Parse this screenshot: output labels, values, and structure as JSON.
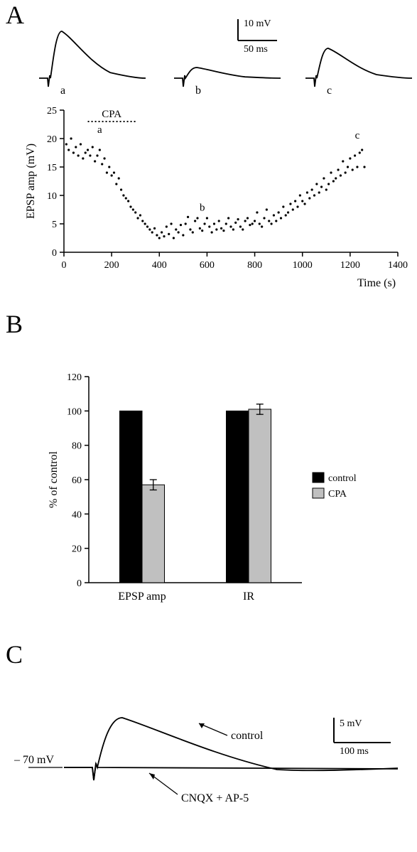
{
  "panelA": {
    "label": "A",
    "scalebar": {
      "y_label": "10 mV",
      "x_label": "50 ms",
      "label_fontsize": 14
    },
    "traces": {
      "a_label": "a",
      "b_label": "b",
      "c_label": "c",
      "trace_color": "#000000",
      "trace_width": 1.8,
      "a_peak_mV": 22,
      "b_peak_mV": 5,
      "c_peak_mV": 14
    },
    "scatter": {
      "xlabel": "Time (s)",
      "ylabel": "EPSP amp (mV)",
      "label_fontsize": 16,
      "tick_fontsize": 14,
      "xlim": [
        0,
        1400
      ],
      "xtick_step": 200,
      "ylim": [
        0,
        25
      ],
      "ytick_step": 5,
      "point_color": "#000000",
      "point_radius": 1.6,
      "cpa_bar": {
        "label": "CPA",
        "start_s": 100,
        "end_s": 300,
        "y_mV": 23,
        "dash": "2,3",
        "stroke_width": 2
      },
      "marker_a": {
        "label": "a",
        "x_s": 150,
        "y_mV": 21
      },
      "marker_c": {
        "label": "c",
        "x_s": 1230,
        "y_mV": 20
      },
      "marker_b": {
        "label": "b",
        "x_s": 580,
        "y_mV": 7.3
      },
      "data": [
        [
          10,
          19
        ],
        [
          20,
          18
        ],
        [
          30,
          20
        ],
        [
          40,
          17.5
        ],
        [
          50,
          18.5
        ],
        [
          60,
          17
        ],
        [
          70,
          19
        ],
        [
          80,
          16.5
        ],
        [
          90,
          17.5
        ],
        [
          100,
          18
        ],
        [
          110,
          17
        ],
        [
          120,
          18.5
        ],
        [
          130,
          16
        ],
        [
          140,
          17
        ],
        [
          150,
          18
        ],
        [
          160,
          15.5
        ],
        [
          170,
          16.5
        ],
        [
          180,
          14
        ],
        [
          190,
          15
        ],
        [
          200,
          13.5
        ],
        [
          210,
          14
        ],
        [
          220,
          12
        ],
        [
          230,
          13
        ],
        [
          240,
          11
        ],
        [
          250,
          10
        ],
        [
          260,
          9.5
        ],
        [
          270,
          9
        ],
        [
          280,
          8
        ],
        [
          290,
          7.5
        ],
        [
          300,
          7
        ],
        [
          310,
          6
        ],
        [
          320,
          6.5
        ],
        [
          330,
          5.5
        ],
        [
          340,
          5
        ],
        [
          350,
          4.5
        ],
        [
          360,
          4
        ],
        [
          370,
          3.5
        ],
        [
          380,
          4.2
        ],
        [
          390,
          3
        ],
        [
          400,
          2.5
        ],
        [
          410,
          3.5
        ],
        [
          420,
          2.8
        ],
        [
          430,
          4.5
        ],
        [
          440,
          3.2
        ],
        [
          450,
          5
        ],
        [
          460,
          2.5
        ],
        [
          470,
          4
        ],
        [
          480,
          3.5
        ],
        [
          490,
          4.8
        ],
        [
          500,
          3
        ],
        [
          510,
          5
        ],
        [
          520,
          6.2
        ],
        [
          530,
          4
        ],
        [
          540,
          3.5
        ],
        [
          550,
          5.5
        ],
        [
          560,
          6
        ],
        [
          570,
          4.2
        ],
        [
          580,
          3.8
        ],
        [
          590,
          5
        ],
        [
          600,
          6
        ],
        [
          610,
          4.5
        ],
        [
          620,
          3.5
        ],
        [
          630,
          5
        ],
        [
          640,
          4
        ],
        [
          650,
          5.5
        ],
        [
          660,
          4.2
        ],
        [
          670,
          3.8
        ],
        [
          680,
          5
        ],
        [
          690,
          6
        ],
        [
          700,
          4.5
        ],
        [
          710,
          4
        ],
        [
          720,
          5.2
        ],
        [
          730,
          5.8
        ],
        [
          740,
          4.5
        ],
        [
          750,
          4
        ],
        [
          760,
          5.5
        ],
        [
          770,
          6
        ],
        [
          780,
          4.8
        ],
        [
          790,
          5
        ],
        [
          800,
          5.5
        ],
        [
          810,
          7
        ],
        [
          820,
          5
        ],
        [
          830,
          4.5
        ],
        [
          840,
          6
        ],
        [
          850,
          7.5
        ],
        [
          860,
          5.5
        ],
        [
          870,
          5
        ],
        [
          880,
          6.5
        ],
        [
          890,
          5.5
        ],
        [
          900,
          7
        ],
        [
          910,
          6
        ],
        [
          920,
          8
        ],
        [
          930,
          6.5
        ],
        [
          940,
          7
        ],
        [
          950,
          8.5
        ],
        [
          960,
          7.5
        ],
        [
          970,
          9
        ],
        [
          980,
          8
        ],
        [
          990,
          10
        ],
        [
          1000,
          9
        ],
        [
          1010,
          8.5
        ],
        [
          1020,
          10.5
        ],
        [
          1030,
          9.5
        ],
        [
          1040,
          11
        ],
        [
          1050,
          10
        ],
        [
          1060,
          12
        ],
        [
          1070,
          10.5
        ],
        [
          1080,
          11.5
        ],
        [
          1090,
          13
        ],
        [
          1100,
          11
        ],
        [
          1110,
          12
        ],
        [
          1120,
          14
        ],
        [
          1130,
          12.5
        ],
        [
          1140,
          13
        ],
        [
          1150,
          14.5
        ],
        [
          1160,
          13.5
        ],
        [
          1170,
          16
        ],
        [
          1180,
          14
        ],
        [
          1190,
          15
        ],
        [
          1200,
          16.5
        ],
        [
          1210,
          14.5
        ],
        [
          1220,
          17
        ],
        [
          1230,
          15
        ],
        [
          1240,
          17.5
        ],
        [
          1250,
          18
        ],
        [
          1260,
          15
        ]
      ]
    }
  },
  "panelB": {
    "label": "B",
    "chart": {
      "ylabel": "% of control",
      "label_fontsize": 16,
      "tick_fontsize": 14,
      "ylim": [
        0,
        120
      ],
      "ytick_step": 20,
      "categories": [
        "EPSP amp",
        "IR"
      ],
      "series": [
        {
          "name": "control",
          "color": "#000000",
          "values": [
            100,
            100
          ],
          "err": [
            0,
            0
          ]
        },
        {
          "name": "CPA",
          "color": "#c0c0c0",
          "values": [
            57,
            101
          ],
          "err": [
            3,
            3
          ]
        }
      ],
      "bar_width": 0.42,
      "gap_within": 0.0,
      "legend_fontsize": 14,
      "err_color": "#000000"
    }
  },
  "panelC": {
    "label": "C",
    "baseline_label": "– 70 mV",
    "control_label": "control",
    "drug_label": "CNQX + AP-5",
    "scalebar": {
      "y_label": "5 mV",
      "x_label": "100 ms",
      "label_fontsize": 14
    },
    "trace_color": "#000000",
    "trace_width": 1.8,
    "label_fontsize": 16
  }
}
